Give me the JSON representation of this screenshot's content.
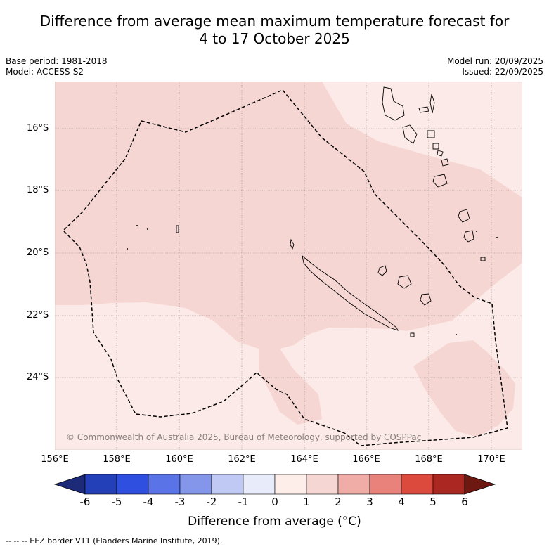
{
  "title": {
    "line1": "Difference from average mean maximum temperature forecast for",
    "line2": "4 to 17 October 2025"
  },
  "meta": {
    "base_period": "Base period: 1981-2018",
    "model": "Model: ACCESS-S2",
    "model_run": "Model run: 20/09/2025",
    "issued": "Issued: 22/09/2025"
  },
  "map": {
    "copyright": "© Commonwealth of Australia 2025, Bureau of Meteorology, supported by COSPPac",
    "lat_labels": [
      "16°S",
      "18°S",
      "20°S",
      "22°S",
      "24°S"
    ],
    "lon_labels": [
      "156°E",
      "158°E",
      "160°E",
      "162°E",
      "164°E",
      "166°E",
      "168°E",
      "170°E"
    ],
    "colors": {
      "zone_light": "#fbeae7",
      "zone_medium": "#f5d6d3"
    }
  },
  "colorbar": {
    "label": "Difference from average (°C)",
    "ticks": [
      "-6",
      "-5",
      "-4",
      "-3",
      "-2",
      "-1",
      "0",
      "1",
      "2",
      "3",
      "4",
      "5",
      "6"
    ],
    "colors": [
      "#1c2a78",
      "#2340b8",
      "#2f4fe0",
      "#5a73e6",
      "#8496ea",
      "#c0c8f4",
      "#e8ecfa",
      "#fdeeea",
      "#f5d6d3",
      "#f0aca6",
      "#e8827b",
      "#dc4a3e",
      "#ab2822",
      "#6e1812"
    ]
  },
  "legend": {
    "eez": "-- -- -- EEZ border V11 (Flanders Marine Institute, 2019)."
  }
}
